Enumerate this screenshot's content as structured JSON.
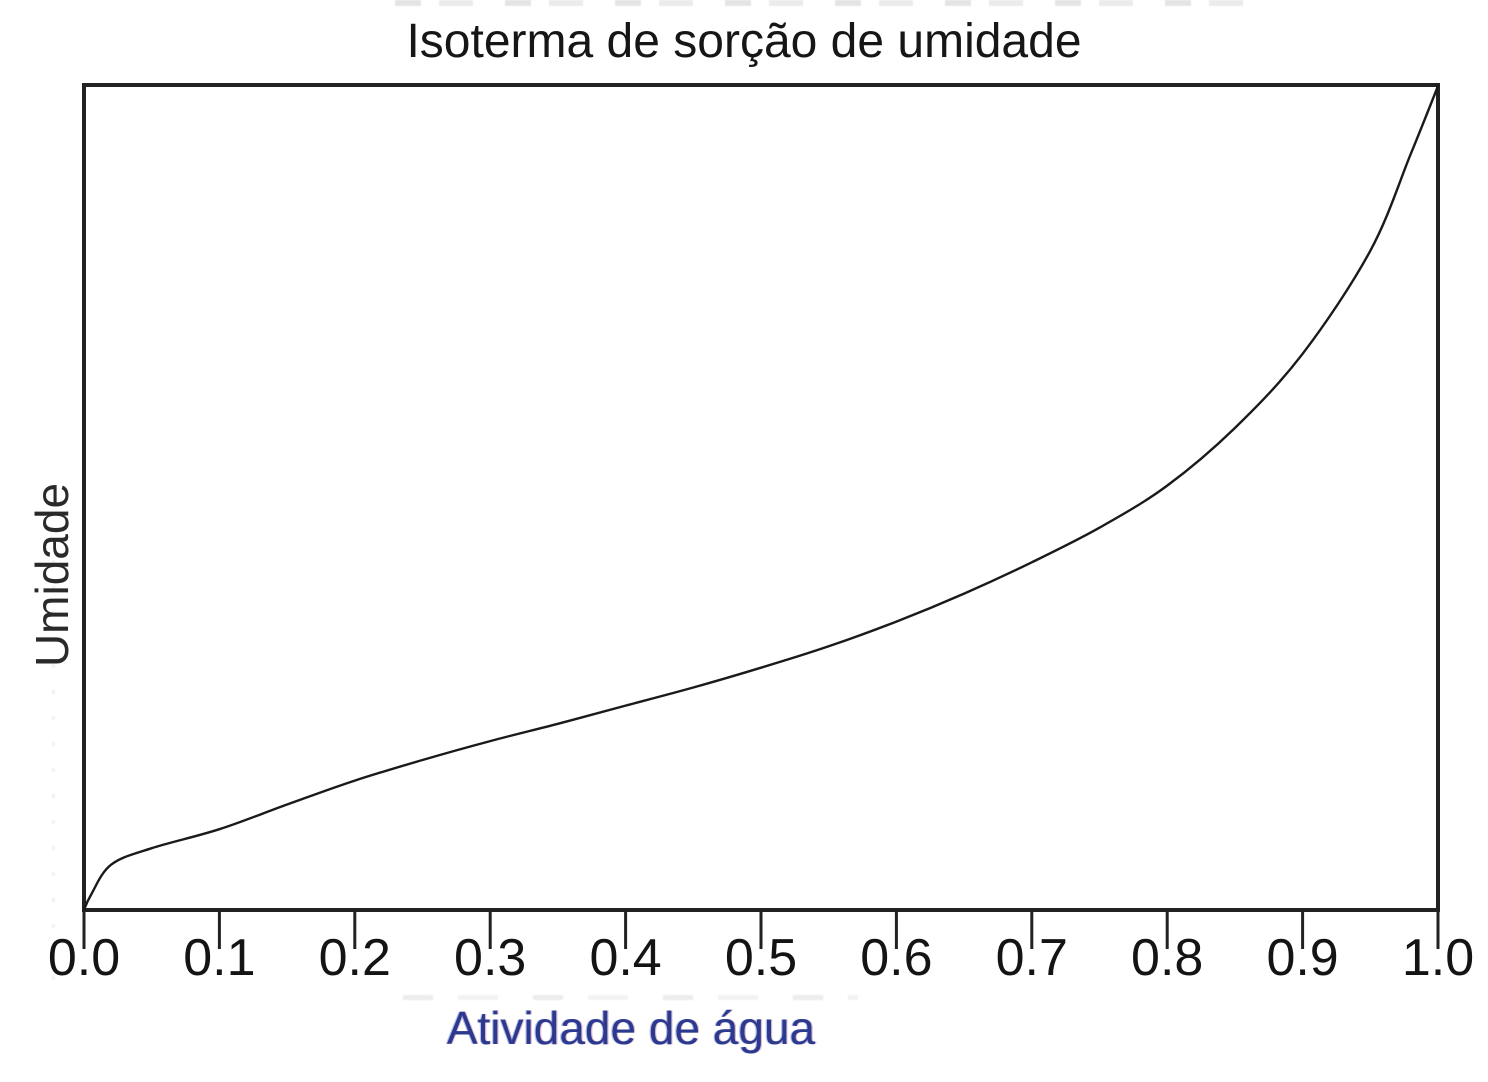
{
  "figure": {
    "title": "Isoterma de sorção de umidade",
    "x_axis_label": "Atividade de água",
    "y_axis_label": "Umidade",
    "colors": {
      "title_text": "#161616",
      "axis_frame": "#222222",
      "curve": "#1a1a1a",
      "tick_label_text": "#141414",
      "x_axis_label_text": "#2b3a8f",
      "background": "#ffffff"
    }
  },
  "chart_data": {
    "type": "line",
    "title": "Isoterma de sorção de umidade",
    "xlabel": "Atividade de água",
    "ylabel": "Umidade",
    "xlim": [
      0.0,
      1.0
    ],
    "ylim": [
      0.0,
      1.0
    ],
    "x_ticks": [
      0.0,
      0.1,
      0.2,
      0.3,
      0.4,
      0.5,
      0.6,
      0.7,
      0.8,
      0.9,
      1.0
    ],
    "x_tick_labels": [
      "0.0",
      "0.1",
      "0.2",
      "0.3",
      "0.4",
      "0.5",
      "0.6",
      "0.7",
      "0.8",
      "0.9",
      "1.0"
    ],
    "y_ticks": [],
    "y_tick_labels": [],
    "grid": false,
    "legend": false,
    "series": [
      {
        "name": "isoterma de sorção",
        "x": [
          0.0,
          0.005,
          0.02,
          0.05,
          0.1,
          0.15,
          0.2,
          0.25,
          0.3,
          0.35,
          0.4,
          0.45,
          0.5,
          0.55,
          0.6,
          0.65,
          0.7,
          0.75,
          0.8,
          0.85,
          0.9,
          0.95,
          0.98,
          1.0
        ],
        "y": [
          0.0,
          0.018,
          0.055,
          0.075,
          0.098,
          0.128,
          0.157,
          0.182,
          0.205,
          0.226,
          0.248,
          0.27,
          0.294,
          0.32,
          0.35,
          0.384,
          0.422,
          0.464,
          0.515,
          0.585,
          0.675,
          0.8,
          0.918,
          1.0
        ],
        "y_scale_note": "relative moisture (axis shown without numeric ticks)"
      }
    ]
  }
}
